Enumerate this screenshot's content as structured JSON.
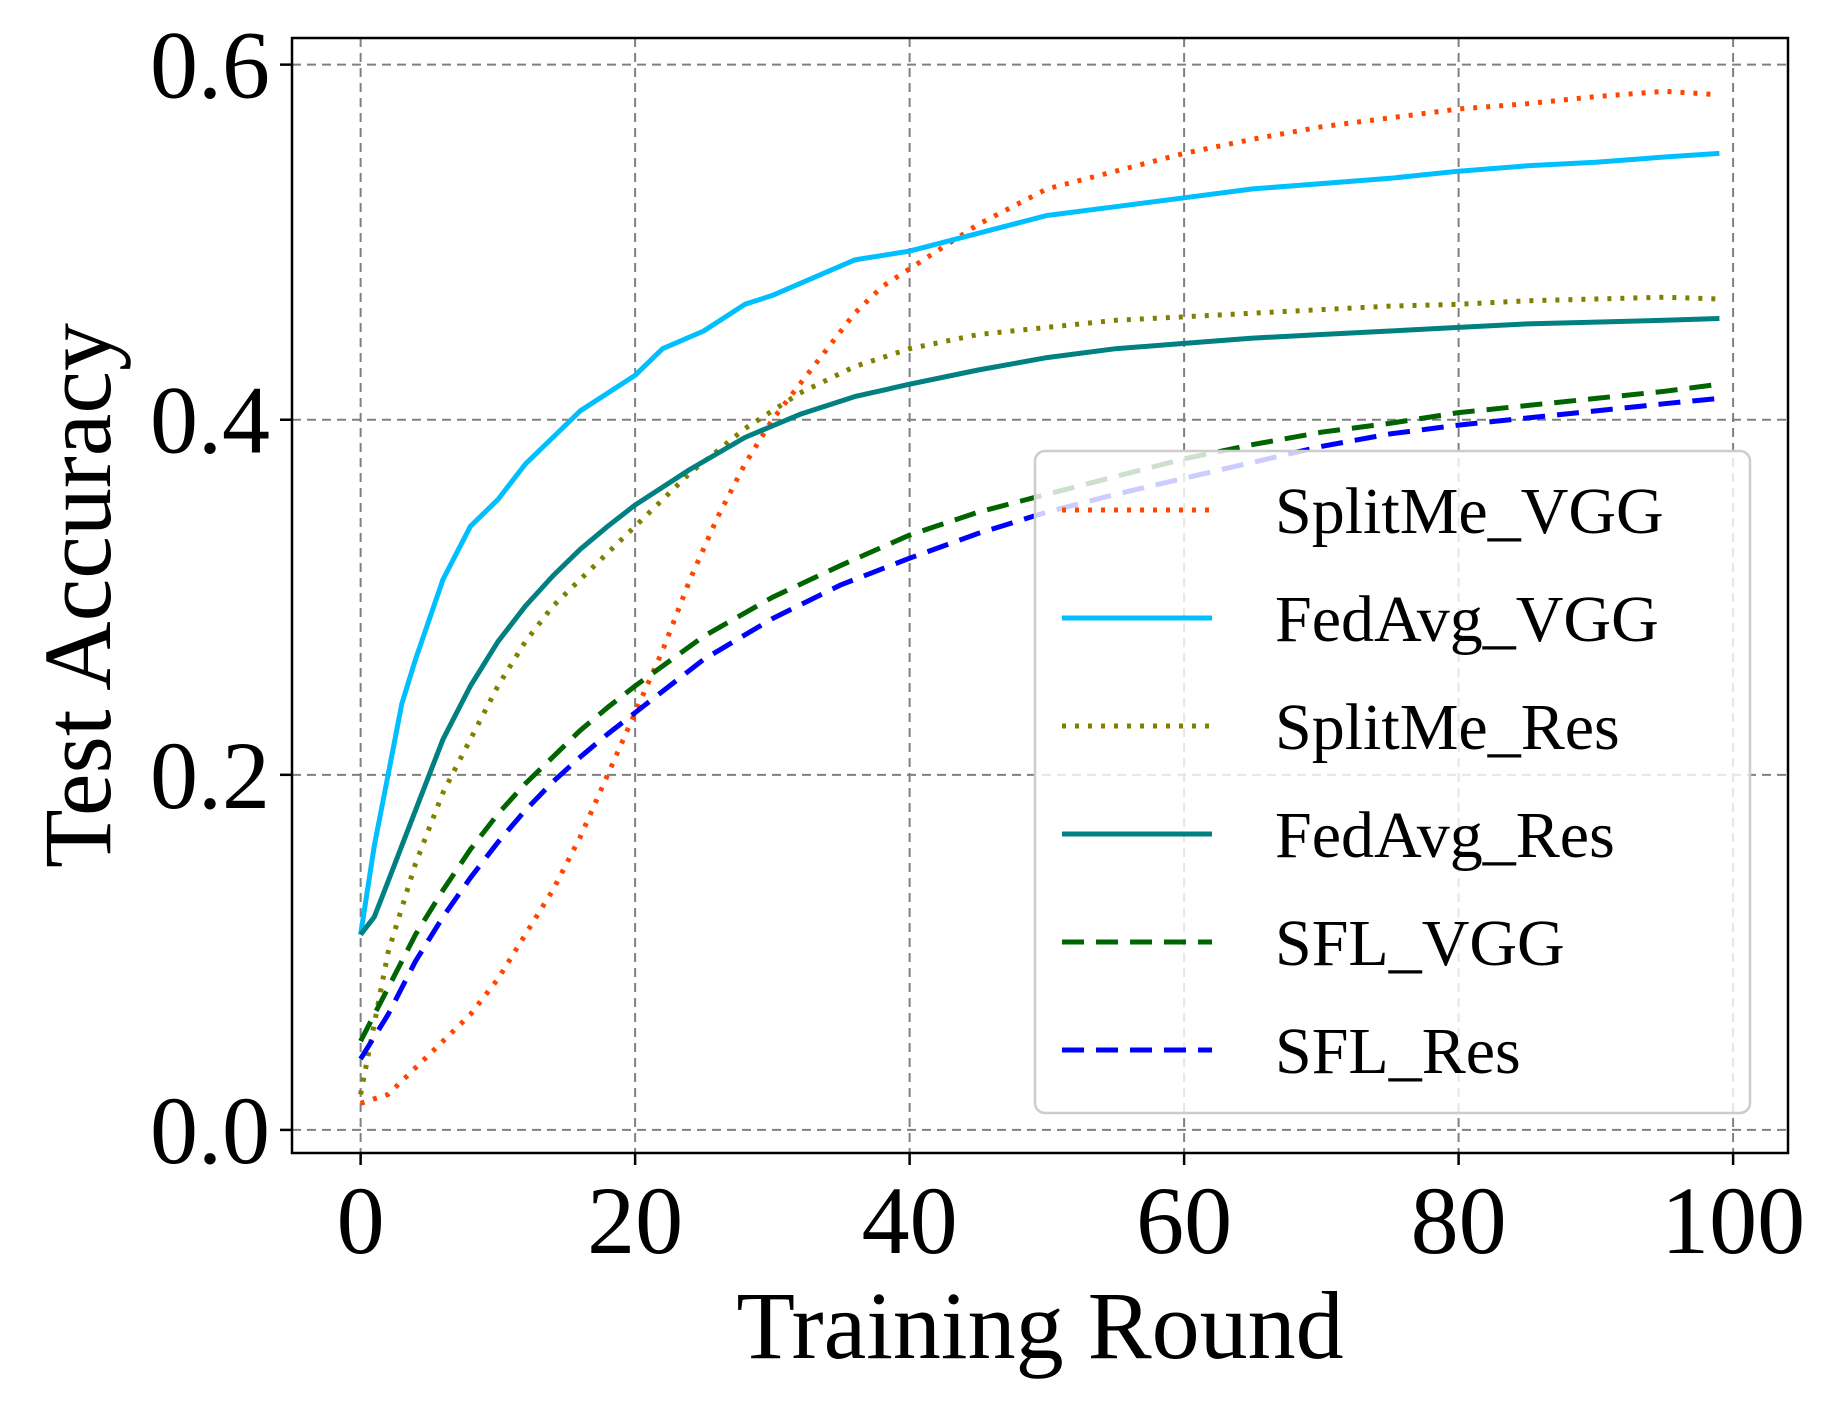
{
  "chart_data": {
    "type": "line",
    "xlabel": "Training Round",
    "ylabel": "Test Accuracy",
    "xlim": [
      -5,
      104
    ],
    "ylim": [
      -0.013,
      0.615
    ],
    "xticks": [
      0,
      20,
      40,
      60,
      80,
      100
    ],
    "xtick_labels": [
      "0",
      "20",
      "40",
      "60",
      "80",
      "100"
    ],
    "yticks": [
      0.0,
      0.2,
      0.4,
      0.6
    ],
    "ytick_labels": [
      "0.0",
      "0.2",
      "0.4",
      "0.6"
    ],
    "grid": true,
    "legend_position": "lower-right",
    "series": [
      {
        "name": "SplitMe_VGG",
        "color": "#ff4500",
        "style": "dotted",
        "x": [
          0,
          2,
          4,
          6,
          8,
          10,
          12,
          14,
          16,
          18,
          20,
          22,
          24,
          26,
          28,
          30,
          32,
          34,
          36,
          38,
          40,
          45,
          50,
          55,
          60,
          65,
          70,
          75,
          80,
          85,
          90,
          95,
          99
        ],
        "y": [
          0.015,
          0.02,
          0.035,
          0.05,
          0.065,
          0.085,
          0.11,
          0.135,
          0.165,
          0.2,
          0.235,
          0.27,
          0.31,
          0.345,
          0.375,
          0.4,
          0.42,
          0.44,
          0.46,
          0.475,
          0.485,
          0.51,
          0.53,
          0.54,
          0.55,
          0.558,
          0.565,
          0.57,
          0.575,
          0.578,
          0.582,
          0.585,
          0.583
        ]
      },
      {
        "name": "FedAvg_VGG",
        "color": "#00bfff",
        "style": "solid",
        "x": [
          0,
          1,
          2,
          3,
          4,
          6,
          8,
          10,
          12,
          14,
          16,
          18,
          20,
          22,
          25,
          28,
          30,
          33,
          36,
          40,
          45,
          50,
          55,
          60,
          65,
          70,
          75,
          80,
          85,
          90,
          95,
          99
        ],
        "y": [
          0.11,
          0.16,
          0.2,
          0.24,
          0.265,
          0.31,
          0.34,
          0.355,
          0.375,
          0.39,
          0.405,
          0.415,
          0.425,
          0.44,
          0.45,
          0.465,
          0.47,
          0.48,
          0.49,
          0.495,
          0.505,
          0.515,
          0.52,
          0.525,
          0.53,
          0.533,
          0.536,
          0.54,
          0.543,
          0.545,
          0.548,
          0.55
        ]
      },
      {
        "name": "SplitMe_Res",
        "color": "#808000",
        "style": "dotted",
        "x": [
          0,
          2,
          4,
          6,
          8,
          10,
          12,
          14,
          16,
          18,
          20,
          24,
          28,
          32,
          36,
          40,
          45,
          50,
          55,
          60,
          65,
          70,
          75,
          80,
          85,
          90,
          95,
          99
        ],
        "y": [
          0.02,
          0.1,
          0.15,
          0.19,
          0.22,
          0.25,
          0.275,
          0.295,
          0.31,
          0.325,
          0.34,
          0.37,
          0.395,
          0.415,
          0.43,
          0.44,
          0.448,
          0.452,
          0.456,
          0.458,
          0.46,
          0.462,
          0.464,
          0.465,
          0.467,
          0.468,
          0.469,
          0.468
        ]
      },
      {
        "name": "FedAvg_Res",
        "color": "#008080",
        "style": "solid",
        "x": [
          0,
          1,
          2,
          3,
          4,
          6,
          8,
          10,
          12,
          14,
          16,
          18,
          20,
          24,
          28,
          32,
          36,
          40,
          45,
          50,
          55,
          60,
          65,
          70,
          75,
          80,
          85,
          90,
          95,
          99
        ],
        "y": [
          0.11,
          0.12,
          0.14,
          0.16,
          0.18,
          0.22,
          0.25,
          0.275,
          0.295,
          0.312,
          0.327,
          0.34,
          0.352,
          0.372,
          0.39,
          0.403,
          0.413,
          0.42,
          0.428,
          0.435,
          0.44,
          0.443,
          0.446,
          0.448,
          0.45,
          0.452,
          0.454,
          0.455,
          0.456,
          0.457
        ]
      },
      {
        "name": "SFL_VGG",
        "color": "#006400",
        "style": "dashed",
        "x": [
          0,
          2,
          4,
          6,
          8,
          10,
          12,
          14,
          16,
          18,
          20,
          25,
          30,
          35,
          40,
          45,
          50,
          55,
          60,
          65,
          70,
          75,
          80,
          85,
          90,
          95,
          99
        ],
        "y": [
          0.05,
          0.08,
          0.11,
          0.135,
          0.158,
          0.178,
          0.195,
          0.21,
          0.225,
          0.238,
          0.25,
          0.278,
          0.3,
          0.318,
          0.335,
          0.348,
          0.358,
          0.368,
          0.378,
          0.386,
          0.393,
          0.398,
          0.404,
          0.408,
          0.412,
          0.416,
          0.42
        ]
      },
      {
        "name": "SFL_Res",
        "color": "#0000ff",
        "style": "dashed",
        "x": [
          0,
          2,
          4,
          6,
          8,
          10,
          12,
          14,
          16,
          18,
          20,
          25,
          30,
          35,
          40,
          45,
          50,
          55,
          60,
          65,
          70,
          75,
          80,
          85,
          90,
          95,
          99
        ],
        "y": [
          0.04,
          0.065,
          0.095,
          0.12,
          0.142,
          0.162,
          0.18,
          0.196,
          0.21,
          0.223,
          0.235,
          0.265,
          0.288,
          0.307,
          0.322,
          0.336,
          0.348,
          0.358,
          0.367,
          0.376,
          0.385,
          0.392,
          0.397,
          0.401,
          0.405,
          0.409,
          0.412
        ]
      }
    ]
  }
}
